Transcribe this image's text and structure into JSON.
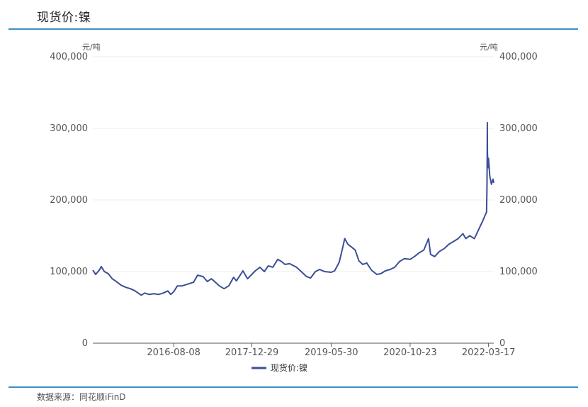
{
  "header": {
    "title": "现货价:镍"
  },
  "footer": {
    "source": "数据来源：同花顺iFinD"
  },
  "colors": {
    "series": "#3b4f96",
    "rule": "#3a8fc4",
    "grid": "#eeeeee",
    "axis": "#555555"
  },
  "chart_data": {
    "type": "line",
    "title": "现货价:镍",
    "y_unit_left": "元/吨",
    "y_unit_right": "元/吨",
    "ylim": [
      0,
      400000
    ],
    "y_ticks": [
      0,
      100000,
      200000,
      300000,
      400000
    ],
    "y_tick_labels": [
      "0",
      "100,000",
      "200,000",
      "300,000",
      "400,000"
    ],
    "x_range": [
      "2015-03-01",
      "2022-04-20"
    ],
    "x_ticks": [
      "2016-08-08",
      "2017-12-29",
      "2019-05-30",
      "2020-10-23",
      "2022-03-17"
    ],
    "grid": true,
    "legend_position": "bottom-center",
    "series": [
      {
        "name": "现货价:镍",
        "color": "#3b4f96",
        "points": [
          [
            "2015-03-01",
            102000
          ],
          [
            "2015-03-20",
            96000
          ],
          [
            "2015-04-15",
            103000
          ],
          [
            "2015-04-25",
            107000
          ],
          [
            "2015-05-15",
            100000
          ],
          [
            "2015-06-10",
            97000
          ],
          [
            "2015-07-05",
            90000
          ],
          [
            "2015-08-01",
            86000
          ],
          [
            "2015-09-01",
            81000
          ],
          [
            "2015-10-01",
            78000
          ],
          [
            "2015-11-01",
            76000
          ],
          [
            "2015-12-01",
            73000
          ],
          [
            "2016-01-10",
            67000
          ],
          [
            "2016-02-01",
            70000
          ],
          [
            "2016-03-01",
            68000
          ],
          [
            "2016-04-01",
            69000
          ],
          [
            "2016-05-01",
            68000
          ],
          [
            "2016-06-01",
            70000
          ],
          [
            "2016-07-01",
            73000
          ],
          [
            "2016-07-20",
            68000
          ],
          [
            "2016-08-08",
            72000
          ],
          [
            "2016-09-01",
            80000
          ],
          [
            "2016-10-01",
            80000
          ],
          [
            "2016-11-15",
            83000
          ],
          [
            "2016-12-15",
            85000
          ],
          [
            "2017-01-10",
            95000
          ],
          [
            "2017-02-15",
            93000
          ],
          [
            "2017-03-15",
            86000
          ],
          [
            "2017-04-10",
            90000
          ],
          [
            "2017-05-01",
            86000
          ],
          [
            "2017-06-01",
            80000
          ],
          [
            "2017-07-01",
            76000
          ],
          [
            "2017-08-01",
            80000
          ],
          [
            "2017-09-01",
            92000
          ],
          [
            "2017-09-20",
            87000
          ],
          [
            "2017-11-01",
            101000
          ],
          [
            "2017-12-01",
            90000
          ],
          [
            "2017-12-29",
            96000
          ],
          [
            "2018-01-20",
            101000
          ],
          [
            "2018-02-20",
            106000
          ],
          [
            "2018-03-20",
            100000
          ],
          [
            "2018-04-15",
            108000
          ],
          [
            "2018-05-15",
            106000
          ],
          [
            "2018-06-15",
            117000
          ],
          [
            "2018-07-10",
            114000
          ],
          [
            "2018-08-01",
            110000
          ],
          [
            "2018-09-01",
            111000
          ],
          [
            "2018-10-15",
            106000
          ],
          [
            "2018-11-15",
            100000
          ],
          [
            "2018-12-20",
            93000
          ],
          [
            "2019-01-15",
            91000
          ],
          [
            "2019-02-15",
            100000
          ],
          [
            "2019-03-15",
            103000
          ],
          [
            "2019-04-15",
            100000
          ],
          [
            "2019-05-30",
            99000
          ],
          [
            "2019-06-20",
            101000
          ],
          [
            "2019-07-20",
            113000
          ],
          [
            "2019-08-10",
            132000
          ],
          [
            "2019-08-25",
            146000
          ],
          [
            "2019-09-15",
            138000
          ],
          [
            "2019-10-10",
            134000
          ],
          [
            "2019-11-01",
            130000
          ],
          [
            "2019-11-25",
            115000
          ],
          [
            "2019-12-20",
            110000
          ],
          [
            "2020-01-15",
            112000
          ],
          [
            "2020-02-15",
            102000
          ],
          [
            "2020-03-20",
            96000
          ],
          [
            "2020-04-15",
            97000
          ],
          [
            "2020-05-15",
            101000
          ],
          [
            "2020-06-15",
            103000
          ],
          [
            "2020-07-15",
            106000
          ],
          [
            "2020-08-15",
            114000
          ],
          [
            "2020-09-15",
            118000
          ],
          [
            "2020-10-23",
            117000
          ],
          [
            "2020-11-20",
            121000
          ],
          [
            "2020-12-20",
            126000
          ],
          [
            "2021-01-20",
            130000
          ],
          [
            "2021-02-20",
            146000
          ],
          [
            "2021-03-05",
            124000
          ],
          [
            "2021-04-01",
            121000
          ],
          [
            "2021-05-01",
            128000
          ],
          [
            "2021-06-01",
            132000
          ],
          [
            "2021-07-01",
            138000
          ],
          [
            "2021-08-01",
            142000
          ],
          [
            "2021-09-01",
            146000
          ],
          [
            "2021-10-01",
            153000
          ],
          [
            "2021-10-20",
            146000
          ],
          [
            "2021-11-15",
            150000
          ],
          [
            "2021-12-15",
            146000
          ],
          [
            "2022-01-10",
            158000
          ],
          [
            "2022-02-10",
            172000
          ],
          [
            "2022-02-25",
            180000
          ],
          [
            "2022-03-04",
            183000
          ],
          [
            "2022-03-07",
            218000
          ],
          [
            "2022-03-08",
            262000
          ],
          [
            "2022-03-09",
            308000
          ],
          [
            "2022-03-10",
            265000
          ],
          [
            "2022-03-14",
            245000
          ],
          [
            "2022-03-17",
            258000
          ],
          [
            "2022-03-25",
            233000
          ],
          [
            "2022-04-05",
            222000
          ],
          [
            "2022-04-15",
            229000
          ],
          [
            "2022-04-20",
            224000
          ]
        ]
      }
    ]
  }
}
